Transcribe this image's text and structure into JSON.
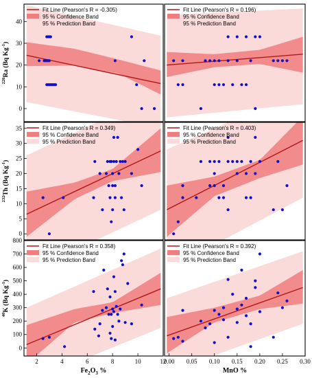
{
  "colors": {
    "point": "#1010c8",
    "fit_line": "#b01818",
    "confidence_band": "#f07e7e",
    "prediction_band": "#fbdada",
    "frame": "#000000"
  },
  "legend": {
    "confidence": "95 % Confidence Band",
    "prediction": "95 % Prediction Band"
  },
  "chart_data": [
    {
      "type": "scatter",
      "row": 0,
      "col": 0,
      "fit_label": "Fit Line (Pearson's R = -0.305)",
      "ylabel": {
        "pre": "226",
        "main": "Ra (Bq Kg",
        "exp": "-1",
        "post": ")"
      },
      "xlim": [
        1,
        12
      ],
      "ylim": [
        -6,
        48
      ],
      "yticks": [
        "0",
        "10",
        "20",
        "30",
        "40"
      ],
      "fit": {
        "x": [
          1.2,
          11.8
        ],
        "y": [
          24.5,
          11.5
        ]
      },
      "conf": {
        "x": [
          1.2,
          5,
          8.5,
          11.8
        ],
        "lo": [
          19.5,
          19.8,
          16,
          6.5
        ],
        "hi": [
          30.5,
          27.5,
          22.5,
          17.5
        ]
      },
      "pred": {
        "x": [
          1.2,
          11.8
        ],
        "lo": [
          3,
          -9
        ],
        "hi": [
          47.5,
          33.5
        ]
      },
      "points": [
        [
          2.2,
          22
        ],
        [
          2.6,
          22
        ],
        [
          2.7,
          22
        ],
        [
          2.8,
          22
        ],
        [
          2.9,
          22
        ],
        [
          3.0,
          22
        ],
        [
          2.8,
          33
        ],
        [
          2.9,
          33
        ],
        [
          3.0,
          33
        ],
        [
          3.1,
          33
        ],
        [
          2.8,
          11
        ],
        [
          2.9,
          11
        ],
        [
          3.0,
          11
        ],
        [
          3.1,
          11
        ],
        [
          3.2,
          11
        ],
        [
          3.3,
          11
        ],
        [
          3.4,
          11
        ],
        [
          3.5,
          11
        ],
        [
          8.2,
          22
        ],
        [
          9.5,
          33
        ],
        [
          9.9,
          11
        ],
        [
          10.3,
          0
        ],
        [
          10.5,
          22
        ],
        [
          11.3,
          0
        ]
      ]
    },
    {
      "type": "scatter",
      "row": 0,
      "col": 1,
      "fit_label": "Fit Line (Pearson's R = 0.196)",
      "xlim": [
        -0.01,
        0.3
      ],
      "ylim": [
        -6,
        48
      ],
      "fit": {
        "x": [
          -0.005,
          0.295
        ],
        "y": [
          20,
          25
        ]
      },
      "conf": {
        "x": [
          -0.005,
          0.1,
          0.2,
          0.295
        ],
        "lo": [
          14.5,
          19,
          20.5,
          16.5
        ],
        "hi": [
          26,
          25,
          27,
          33
        ]
      },
      "pred": {
        "x": [
          -0.005,
          0.295
        ],
        "lo": [
          -4,
          2
        ],
        "hi": [
          43,
          46
        ]
      },
      "points": [
        [
          0.01,
          22
        ],
        [
          0.02,
          11
        ],
        [
          0.03,
          11
        ],
        [
          0.03,
          22
        ],
        [
          0.07,
          0
        ],
        [
          0.08,
          22
        ],
        [
          0.09,
          22
        ],
        [
          0.1,
          11
        ],
        [
          0.1,
          22
        ],
        [
          0.11,
          11
        ],
        [
          0.11,
          22
        ],
        [
          0.12,
          11
        ],
        [
          0.13,
          33
        ],
        [
          0.13,
          22
        ],
        [
          0.14,
          11
        ],
        [
          0.15,
          33
        ],
        [
          0.15,
          22
        ],
        [
          0.16,
          11
        ],
        [
          0.17,
          33
        ],
        [
          0.17,
          11
        ],
        [
          0.18,
          22
        ],
        [
          0.19,
          33
        ],
        [
          0.19,
          0
        ],
        [
          0.2,
          33
        ],
        [
          0.23,
          22
        ],
        [
          0.24,
          22
        ],
        [
          0.25,
          22
        ],
        [
          0.26,
          22
        ]
      ]
    },
    {
      "type": "scatter",
      "row": 1,
      "col": 0,
      "fit_label": "Fit Line (Pearson's R = 0.349)",
      "ylabel": {
        "pre": "232",
        "main": "Th (Bq Kg",
        "exp": "-1",
        "post": ")"
      },
      "xlim": [
        1,
        12
      ],
      "ylim": [
        -2,
        37
      ],
      "yticks": [
        "0",
        "5",
        "10",
        "15",
        "20",
        "25",
        "30",
        "35"
      ],
      "fit": {
        "x": [
          1.2,
          11.8
        ],
        "y": [
          6.5,
          27.5
        ]
      },
      "conf": {
        "x": [
          1.2,
          5,
          8,
          11.8
        ],
        "lo": [
          -1,
          11.5,
          17.5,
          20.5
        ],
        "hi": [
          14,
          17,
          21.5,
          35
        ]
      },
      "pred": {
        "x": [
          1.2,
          11.8
        ],
        "lo": [
          -13,
          8
        ],
        "hi": [
          26,
          47
        ]
      },
      "points": [
        [
          2.5,
          12
        ],
        [
          3.0,
          0
        ],
        [
          4.1,
          12
        ],
        [
          6.5,
          12
        ],
        [
          6.6,
          24
        ],
        [
          7.0,
          20
        ],
        [
          7.2,
          8
        ],
        [
          7.5,
          20
        ],
        [
          7.6,
          24
        ],
        [
          7.7,
          16
        ],
        [
          7.8,
          24
        ],
        [
          7.8,
          12
        ],
        [
          7.9,
          4
        ],
        [
          7.9,
          24
        ],
        [
          8.0,
          16
        ],
        [
          8.0,
          20
        ],
        [
          8.0,
          8
        ],
        [
          8.1,
          24
        ],
        [
          8.1,
          32
        ],
        [
          8.2,
          16
        ],
        [
          8.2,
          12
        ],
        [
          8.3,
          24
        ],
        [
          8.4,
          32
        ],
        [
          8.5,
          20
        ],
        [
          8.6,
          24
        ],
        [
          8.7,
          12
        ],
        [
          8.8,
          24
        ],
        [
          8.9,
          8
        ],
        [
          9.0,
          24
        ],
        [
          9.5,
          20
        ],
        [
          10.0,
          28
        ],
        [
          10.3,
          16
        ]
      ]
    },
    {
      "type": "scatter",
      "row": 1,
      "col": 1,
      "fit_label": "Fit Line (Pearson's R = 0.403)",
      "xlim": [
        -0.01,
        0.3
      ],
      "ylim": [
        -2,
        37
      ],
      "fit": {
        "x": [
          -0.005,
          0.295
        ],
        "y": [
          8,
          31
        ]
      },
      "conf": {
        "x": [
          -0.005,
          0.1,
          0.2,
          0.295
        ],
        "lo": [
          -1,
          12.5,
          18.5,
          23
        ],
        "hi": [
          16,
          19,
          24.5,
          39
        ]
      },
      "pred": {
        "x": [
          -0.005,
          0.295
        ],
        "lo": [
          -12,
          12
        ],
        "hi": [
          28,
          48
        ]
      },
      "points": [
        [
          0.01,
          0
        ],
        [
          0.02,
          4
        ],
        [
          0.03,
          12
        ],
        [
          0.03,
          16
        ],
        [
          0.06,
          12
        ],
        [
          0.07,
          24
        ],
        [
          0.09,
          16
        ],
        [
          0.09,
          24
        ],
        [
          0.1,
          20
        ],
        [
          0.1,
          16
        ],
        [
          0.1,
          24
        ],
        [
          0.11,
          12
        ],
        [
          0.11,
          24
        ],
        [
          0.12,
          16
        ],
        [
          0.12,
          12
        ],
        [
          0.13,
          32
        ],
        [
          0.13,
          8
        ],
        [
          0.13,
          24
        ],
        [
          0.14,
          24
        ],
        [
          0.15,
          20
        ],
        [
          0.15,
          24
        ],
        [
          0.16,
          24
        ],
        [
          0.17,
          20
        ],
        [
          0.17,
          12
        ],
        [
          0.18,
          12
        ],
        [
          0.18,
          24
        ],
        [
          0.19,
          32
        ],
        [
          0.19,
          20
        ],
        [
          0.2,
          24
        ],
        [
          0.23,
          8
        ],
        [
          0.24,
          24
        ],
        [
          0.25,
          8
        ],
        [
          0.26,
          16
        ]
      ]
    },
    {
      "type": "scatter",
      "row": 2,
      "col": 0,
      "fit_label": "Fit Line (Pearson's R = 0.358)",
      "ylabel": {
        "pre": "40",
        "main": "K (Bq Kg",
        "exp": "-1",
        "post": ")"
      },
      "xlim": [
        1,
        12
      ],
      "ylim": [
        -60,
        800
      ],
      "yticks": [
        "0",
        "100",
        "200",
        "300",
        "400",
        "500",
        "600",
        "700",
        "800"
      ],
      "xticks": [
        "2",
        "4",
        "6",
        "8",
        "10",
        "12"
      ],
      "xlabel": {
        "main": "Fe",
        "sub1": "2",
        "mid": "O",
        "sub2": "3",
        "post": " %"
      },
      "fit": {
        "x": [
          1.2,
          11.8
        ],
        "y": [
          25,
          440
        ]
      },
      "conf": {
        "x": [
          1.2,
          5,
          8,
          11.8
        ],
        "lo": [
          -120,
          190,
          260,
          320
        ],
        "hi": [
          170,
          290,
          340,
          560
        ]
      },
      "pred": {
        "x": [
          1.2,
          11.8
        ],
        "lo": [
          -260,
          150
        ],
        "hi": [
          300,
          740
        ]
      },
      "points": [
        [
          2.5,
          70
        ],
        [
          3.0,
          80
        ],
        [
          4.2,
          10
        ],
        [
          6.5,
          420
        ],
        [
          6.6,
          140
        ],
        [
          6.9,
          90
        ],
        [
          7.0,
          180
        ],
        [
          7.2,
          280
        ],
        [
          7.3,
          580
        ],
        [
          7.5,
          300
        ],
        [
          7.6,
          440
        ],
        [
          7.7,
          250
        ],
        [
          7.8,
          110
        ],
        [
          7.8,
          380
        ],
        [
          7.9,
          70
        ],
        [
          7.9,
          250
        ],
        [
          8.0,
          290
        ],
        [
          8.0,
          160
        ],
        [
          8.1,
          270
        ],
        [
          8.1,
          530
        ],
        [
          8.2,
          60
        ],
        [
          8.2,
          420
        ],
        [
          8.3,
          310
        ],
        [
          8.4,
          250
        ],
        [
          8.5,
          200
        ],
        [
          8.6,
          290
        ],
        [
          8.7,
          650
        ],
        [
          8.8,
          620
        ],
        [
          8.9,
          700
        ],
        [
          9.0,
          190
        ],
        [
          9.2,
          480
        ],
        [
          9.5,
          180
        ],
        [
          10.3,
          320
        ]
      ]
    },
    {
      "type": "scatter",
      "row": 2,
      "col": 1,
      "fit_label": "Fit Line (Pearson's R = 0.392)",
      "xlim": [
        -0.01,
        0.3
      ],
      "ylim": [
        -60,
        800
      ],
      "xticks": [
        "0.00",
        "0.05",
        "0.10",
        "0.15",
        "0.20",
        "0.25",
        "0.30"
      ],
      "xlabel": {
        "main": "MnO %"
      },
      "fit": {
        "x": [
          -0.005,
          0.295
        ],
        "y": [
          90,
          450
        ]
      },
      "conf": {
        "x": [
          -0.005,
          0.1,
          0.2,
          0.295
        ],
        "lo": [
          -40,
          190,
          290,
          330
        ],
        "hi": [
          230,
          300,
          390,
          580
        ]
      },
      "pred": {
        "x": [
          -0.005,
          0.295
        ],
        "lo": [
          -180,
          180
        ],
        "hi": [
          370,
          720
        ]
      },
      "points": [
        [
          0.01,
          70
        ],
        [
          0.02,
          80
        ],
        [
          0.03,
          50
        ],
        [
          0.03,
          280
        ],
        [
          0.07,
          200
        ],
        [
          0.08,
          150
        ],
        [
          0.09,
          180
        ],
        [
          0.1,
          40
        ],
        [
          0.1,
          280
        ],
        [
          0.11,
          250
        ],
        [
          0.12,
          210
        ],
        [
          0.12,
          300
        ],
        [
          0.13,
          510
        ],
        [
          0.13,
          80
        ],
        [
          0.14,
          400
        ],
        [
          0.15,
          190
        ],
        [
          0.15,
          290
        ],
        [
          0.16,
          580
        ],
        [
          0.16,
          320
        ],
        [
          0.17,
          240
        ],
        [
          0.17,
          370
        ],
        [
          0.18,
          180
        ],
        [
          0.18,
          10
        ],
        [
          0.19,
          500
        ],
        [
          0.19,
          450
        ],
        [
          0.2,
          700
        ],
        [
          0.2,
          270
        ],
        [
          0.23,
          80
        ],
        [
          0.24,
          410
        ],
        [
          0.25,
          300
        ],
        [
          0.26,
          350
        ]
      ]
    }
  ]
}
